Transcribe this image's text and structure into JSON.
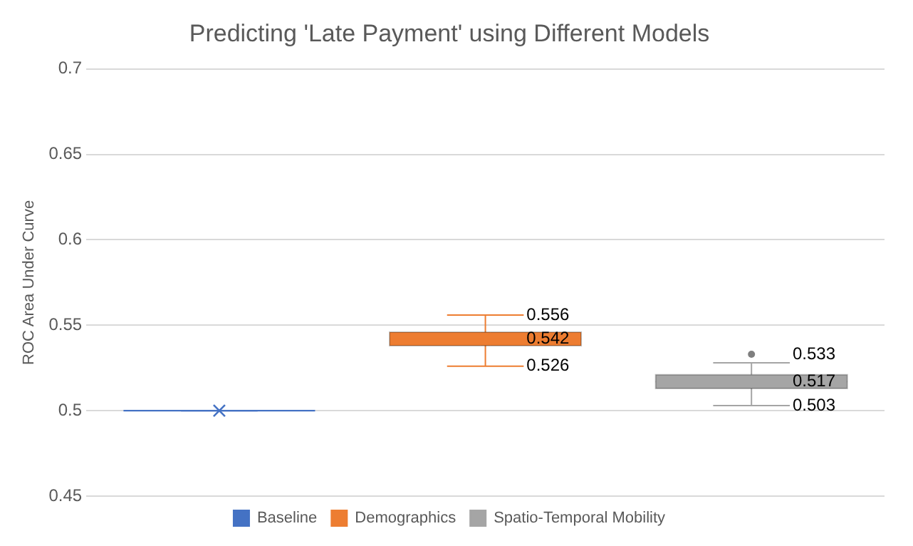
{
  "chart_data": {
    "type": "box",
    "title": "Predicting 'Late Payment' using Different Models",
    "ylabel": "ROC Area Under Curve",
    "categories": [
      null
    ],
    "series": [
      {
        "name": "Baseline",
        "color": "#4472c4",
        "boxes": [
          {
            "low": 0.5,
            "q1": 0.5,
            "median": 0.5,
            "q3": 0.5,
            "high": 0.5,
            "mean": 0.5
          }
        ],
        "value_labels": [
          null
        ]
      },
      {
        "name": "Demographics",
        "color": "#ed7d31",
        "boxes": [
          {
            "low": 0.526,
            "q1": 0.538,
            "median": 0.542,
            "q3": 0.546,
            "high": 0.556,
            "mean": 0.542
          }
        ],
        "value_labels": [
          [
            "0.556",
            "0.542",
            "0.526"
          ]
        ]
      },
      {
        "name": "Spatio-Temporal Mobility",
        "color": "#a5a5a5",
        "boxes": [
          {
            "low": 0.503,
            "q1": 0.513,
            "median": 0.517,
            "q3": 0.521,
            "high": 0.528,
            "outliers": [
              0.533
            ]
          }
        ],
        "value_labels": [
          [
            "0.533",
            "0.517",
            "0.503"
          ]
        ]
      }
    ],
    "ylim": [
      0.45,
      0.7
    ],
    "yticks": [
      0.45,
      0.5,
      0.55,
      0.6,
      0.65,
      0.7
    ],
    "grid": "y",
    "legend": "bottom",
    "marker": "cross"
  }
}
